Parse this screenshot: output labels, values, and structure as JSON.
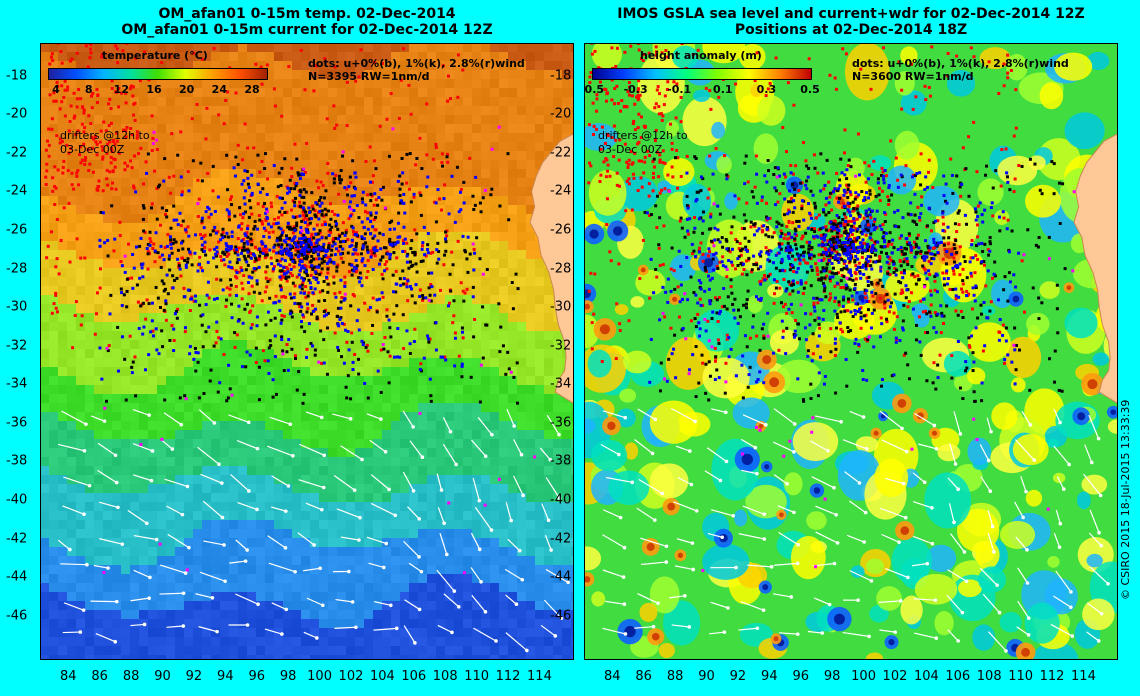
{
  "left_panel": {
    "title_line1": "OM_afan01 0-15m temp. 02-Dec-2014",
    "title_line2": "OM_afan01 0-15m current for 02-Dec-2014 12Z",
    "colorbar_title": "temperature (°C)",
    "colorbar_ticks": [
      "4",
      "8",
      "12",
      "16",
      "20",
      "24",
      "28"
    ],
    "colorbar_colors": [
      "#2020a0",
      "#0050ff",
      "#00b4ff",
      "#00e0a0",
      "#40e000",
      "#e0ff00",
      "#ffa000",
      "#ff5000",
      "#a02000"
    ],
    "dots_legend": "dots: u+0%(b), 1%(k), 2.8%(r)wind",
    "stats": "N=3395 RW=1nm/d",
    "drifters_note": "drifters @12h to",
    "drifters_date": "03-Dec 00Z"
  },
  "right_panel": {
    "title_line1": "IMOS GSLA sea level and current+wdr for 02-Dec-2014 12Z",
    "title_line2": "Positions at 02-Dec-2014 18Z",
    "colorbar_title": "height anomaly (m)",
    "colorbar_ticks": [
      "-0.5",
      "-0.3",
      "-0.1",
      "0.1",
      "0.3",
      "0.5"
    ],
    "colorbar_colors": [
      "#000090",
      "#0040ff",
      "#00c0ff",
      "#00ff80",
      "#80ff00",
      "#ffff00",
      "#ff8000",
      "#c00000"
    ],
    "dots_legend": "dots: u+0%(b), 1%(k), 2.8%(r)wind",
    "stats": "N=3600 RW=1nm/d",
    "drifters_note": "drifters @12h to",
    "drifters_date": "03-Dec 00Z"
  },
  "axes": {
    "lon_ticks": [
      "84",
      "86",
      "88",
      "90",
      "92",
      "94",
      "96",
      "98",
      "100",
      "102",
      "104",
      "106",
      "108",
      "110",
      "112",
      "114"
    ],
    "lat_ticks": [
      "-18",
      "-20",
      "-22",
      "-24",
      "-26",
      "-28",
      "-30",
      "-32",
      "-34",
      "-36",
      "-38",
      "-40",
      "-42",
      "-44",
      "-46"
    ],
    "lon_range": [
      82.2,
      116.2
    ],
    "lat_range": [
      -48.3,
      -16.3
    ]
  },
  "copyright": "© CSIRO 2015   18-Jul-2015 13:33:39",
  "colors": {
    "background": "#00ffff",
    "land": "#ffc896",
    "dot_blue": "#0000ff",
    "dot_black": "#000000",
    "dot_red": "#ff0000",
    "dot_magenta": "#ff00ff"
  }
}
